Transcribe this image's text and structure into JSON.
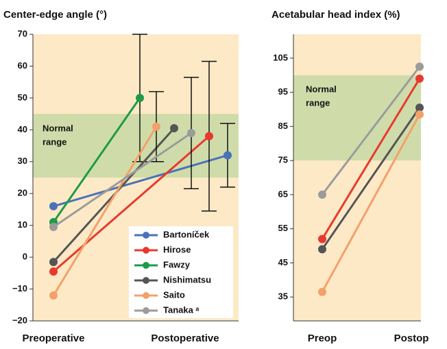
{
  "chart_data": [
    {
      "type": "line",
      "title": "Center-edge angle (°)",
      "categories": [
        "Preoperative",
        "Postoperative"
      ],
      "ylim": [
        -20,
        70
      ],
      "yticks": [
        {
          "value": -20,
          "label": "−20"
        },
        {
          "value": -10,
          "label": "−10"
        },
        0,
        10,
        20,
        30,
        40,
        50,
        60,
        70
      ],
      "band": [
        25,
        45
      ],
      "band_label": [
        "Normal",
        "range"
      ],
      "legend": "lower right",
      "series": [
        {
          "name": "Bartoníček",
          "color": "#4a72b8",
          "values": [
            16,
            32
          ],
          "errors": [
            null,
            10
          ]
        },
        {
          "name": "Hirose",
          "color": "#e8392e",
          "values": [
            -4.5,
            38
          ],
          "errors": [
            null,
            23.5
          ]
        },
        {
          "name": "Fawzy",
          "color": "#1e9a48",
          "values": [
            11,
            50
          ],
          "errors": [
            null,
            20
          ]
        },
        {
          "name": "Nishimatsu",
          "color": "#555555",
          "values": [
            -1.5,
            40.5
          ],
          "errors": [
            null,
            null
          ]
        },
        {
          "name": "Saito",
          "color": "#f4a06a",
          "values": [
            -12,
            41
          ],
          "errors": [
            null,
            11
          ]
        },
        {
          "name": "Tanaka ᵃ",
          "color": "#9b9b9b",
          "values": [
            9.5,
            39
          ],
          "errors": [
            null,
            17.5
          ]
        }
      ]
    },
    {
      "type": "line",
      "title": "Acetabular head index (%)",
      "categories": [
        "Preop",
        "Postop"
      ],
      "ylim": [
        28,
        112
      ],
      "yticks": [
        35,
        45,
        55,
        65,
        75,
        85,
        95,
        105
      ],
      "band": [
        75,
        100
      ],
      "band_label": [
        "Normal",
        "range"
      ],
      "series": [
        {
          "color": "#9b9b9b",
          "values": [
            65,
            102.5
          ]
        },
        {
          "color": "#e8392e",
          "values": [
            52,
            99
          ]
        },
        {
          "color": "#555555",
          "values": [
            49,
            90.5
          ]
        },
        {
          "color": "#f4a06a",
          "values": [
            36.5,
            88.5
          ]
        }
      ]
    }
  ]
}
